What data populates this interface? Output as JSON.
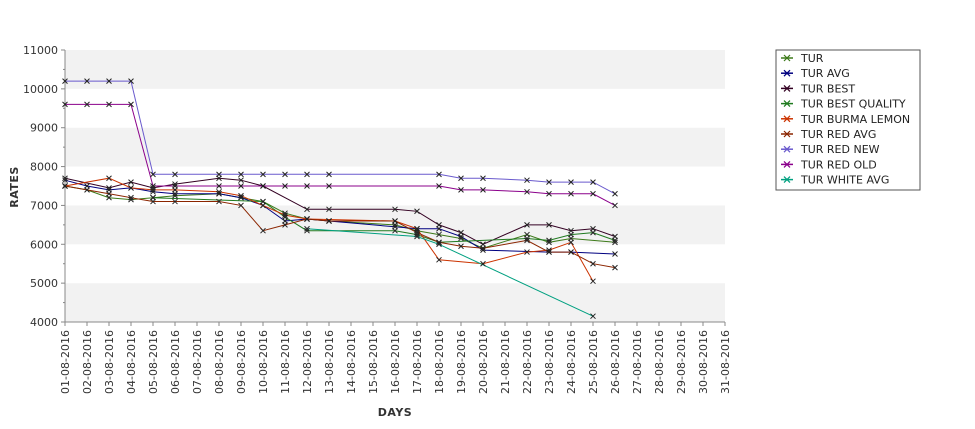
{
  "chart_data": {
    "type": "line",
    "xlabel": "DAYS",
    "ylabel": "RATES",
    "ylim": [
      4000,
      11000
    ],
    "y_ticks": [
      4000,
      5000,
      6000,
      7000,
      8000,
      9000,
      10000,
      11000
    ],
    "grid": "alternating horizontal bands",
    "legend_position": "right",
    "x": [
      "01-08-2016",
      "02-08-2016",
      "03-08-2016",
      "04-08-2016",
      "05-08-2016",
      "06-08-2016",
      "07-08-2016",
      "08-08-2016",
      "09-08-2016",
      "10-08-2016",
      "11-08-2016",
      "12-08-2016",
      "13-08-2016",
      "14-08-2016",
      "15-08-2016",
      "16-08-2016",
      "17-08-2016",
      "18-08-2016",
      "19-08-2016",
      "20-08-2016",
      "21-08-2016",
      "22-08-2016",
      "23-08-2016",
      "24-08-2016",
      "25-08-2016",
      "26-08-2016",
      "27-08-2016",
      "28-08-2016",
      "29-08-2016",
      "30-08-2016",
      "31-08-2016"
    ],
    "series": [
      {
        "name": "TUR",
        "color": "#3d7a1a",
        "points": [
          [
            "01-08-2016",
            7500
          ],
          [
            "02-08-2016",
            7400
          ],
          [
            "03-08-2016",
            7200
          ],
          [
            "04-08-2016",
            7150
          ],
          [
            "05-08-2016",
            7200
          ],
          [
            "06-08-2016",
            7250
          ],
          [
            "08-08-2016",
            7300
          ],
          [
            "09-08-2016",
            7200
          ],
          [
            "10-08-2016",
            7100
          ],
          [
            "11-08-2016",
            6800
          ],
          [
            "12-08-2016",
            6650
          ],
          [
            "13-08-2016",
            6600
          ],
          [
            "16-08-2016",
            6500
          ],
          [
            "17-08-2016",
            6350
          ],
          [
            "18-08-2016",
            6250
          ],
          [
            "19-08-2016",
            6150
          ],
          [
            "20-08-2016",
            5900
          ],
          [
            "22-08-2016",
            6250
          ],
          [
            "23-08-2016",
            6050
          ],
          [
            "24-08-2016",
            6150
          ],
          [
            "26-08-2016",
            6050
          ]
        ]
      },
      {
        "name": "TUR AVG",
        "color": "#000080",
        "points": [
          [
            "01-08-2016",
            7650
          ],
          [
            "02-08-2016",
            7500
          ],
          [
            "03-08-2016",
            7400
          ],
          [
            "04-08-2016",
            7450
          ],
          [
            "05-08-2016",
            7350
          ],
          [
            "06-08-2016",
            7300
          ],
          [
            "08-08-2016",
            7300
          ],
          [
            "09-08-2016",
            7200
          ],
          [
            "10-08-2016",
            7000
          ],
          [
            "11-08-2016",
            6600
          ],
          [
            "12-08-2016",
            6650
          ],
          [
            "13-08-2016",
            6600
          ],
          [
            "16-08-2016",
            6450
          ],
          [
            "17-08-2016",
            6400
          ],
          [
            "18-08-2016",
            6400
          ],
          [
            "19-08-2016",
            6200
          ],
          [
            "20-08-2016",
            5850
          ],
          [
            "23-08-2016",
            5800
          ],
          [
            "24-08-2016",
            5800
          ],
          [
            "26-08-2016",
            5750
          ]
        ]
      },
      {
        "name": "TUR BEST",
        "color": "#330022",
        "points": [
          [
            "01-08-2016",
            7700
          ],
          [
            "03-08-2016",
            7450
          ],
          [
            "04-08-2016",
            7600
          ],
          [
            "05-08-2016",
            7450
          ],
          [
            "06-08-2016",
            7550
          ],
          [
            "08-08-2016",
            7700
          ],
          [
            "09-08-2016",
            7650
          ],
          [
            "10-08-2016",
            7500
          ],
          [
            "12-08-2016",
            6900
          ],
          [
            "13-08-2016",
            6900
          ],
          [
            "16-08-2016",
            6900
          ],
          [
            "17-08-2016",
            6850
          ],
          [
            "18-08-2016",
            6500
          ],
          [
            "19-08-2016",
            6300
          ],
          [
            "20-08-2016",
            6000
          ],
          [
            "22-08-2016",
            6500
          ],
          [
            "23-08-2016",
            6500
          ],
          [
            "24-08-2016",
            6350
          ],
          [
            "25-08-2016",
            6400
          ],
          [
            "26-08-2016",
            6200
          ]
        ]
      },
      {
        "name": "TUR BEST QUALITY",
        "color": "#1f7a1f",
        "points": [
          [
            "05-08-2016",
            7200
          ],
          [
            "10-08-2016",
            7100
          ],
          [
            "11-08-2016",
            6700
          ],
          [
            "12-08-2016",
            6350
          ],
          [
            "16-08-2016",
            6350
          ],
          [
            "17-08-2016",
            6250
          ],
          [
            "18-08-2016",
            6050
          ],
          [
            "22-08-2016",
            6150
          ],
          [
            "23-08-2016",
            6100
          ],
          [
            "24-08-2016",
            6250
          ],
          [
            "25-08-2016",
            6300
          ],
          [
            "26-08-2016",
            6100
          ]
        ]
      },
      {
        "name": "TUR BURMA LEMON",
        "color": "#cc3300",
        "points": [
          [
            "01-08-2016",
            7500
          ],
          [
            "03-08-2016",
            7700
          ],
          [
            "04-08-2016",
            7450
          ],
          [
            "05-08-2016",
            7400
          ],
          [
            "06-08-2016",
            7400
          ],
          [
            "08-08-2016",
            7350
          ],
          [
            "09-08-2016",
            7250
          ],
          [
            "10-08-2016",
            7000
          ],
          [
            "11-08-2016",
            6750
          ],
          [
            "12-08-2016",
            6650
          ],
          [
            "16-08-2016",
            6600
          ],
          [
            "17-08-2016",
            6400
          ],
          [
            "18-08-2016",
            5600
          ],
          [
            "20-08-2016",
            5500
          ],
          [
            "22-08-2016",
            5800
          ],
          [
            "23-08-2016",
            5850
          ],
          [
            "24-08-2016",
            6050
          ],
          [
            "25-08-2016",
            5050
          ]
        ]
      },
      {
        "name": "TUR RED AVG",
        "color": "#8b2500",
        "points": [
          [
            "01-08-2016",
            7500
          ],
          [
            "03-08-2016",
            7300
          ],
          [
            "04-08-2016",
            7200
          ],
          [
            "05-08-2016",
            7100
          ],
          [
            "06-08-2016",
            7100
          ],
          [
            "08-08-2016",
            7100
          ],
          [
            "09-08-2016",
            7000
          ],
          [
            "10-08-2016",
            6350
          ],
          [
            "11-08-2016",
            6500
          ],
          [
            "12-08-2016",
            6650
          ],
          [
            "13-08-2016",
            6600
          ],
          [
            "16-08-2016",
            6600
          ],
          [
            "17-08-2016",
            6300
          ],
          [
            "18-08-2016",
            6050
          ],
          [
            "19-08-2016",
            5950
          ],
          [
            "20-08-2016",
            5900
          ],
          [
            "22-08-2016",
            6100
          ],
          [
            "23-08-2016",
            5800
          ],
          [
            "24-08-2016",
            5800
          ],
          [
            "25-08-2016",
            5500
          ],
          [
            "26-08-2016",
            5400
          ]
        ]
      },
      {
        "name": "TUR RED NEW",
        "color": "#6a5acd",
        "points": [
          [
            "01-08-2016",
            10200
          ],
          [
            "02-08-2016",
            10200
          ],
          [
            "03-08-2016",
            10200
          ],
          [
            "04-08-2016",
            10200
          ],
          [
            "05-08-2016",
            7800
          ],
          [
            "06-08-2016",
            7800
          ],
          [
            "08-08-2016",
            7800
          ],
          [
            "09-08-2016",
            7800
          ],
          [
            "10-08-2016",
            7800
          ],
          [
            "11-08-2016",
            7800
          ],
          [
            "12-08-2016",
            7800
          ],
          [
            "13-08-2016",
            7800
          ],
          [
            "18-08-2016",
            7800
          ],
          [
            "19-08-2016",
            7700
          ],
          [
            "20-08-2016",
            7700
          ],
          [
            "22-08-2016",
            7650
          ],
          [
            "23-08-2016",
            7600
          ],
          [
            "24-08-2016",
            7600
          ],
          [
            "25-08-2016",
            7600
          ],
          [
            "26-08-2016",
            7300
          ]
        ]
      },
      {
        "name": "TUR RED OLD",
        "color": "#8b008b",
        "points": [
          [
            "01-08-2016",
            9600
          ],
          [
            "02-08-2016",
            9600
          ],
          [
            "03-08-2016",
            9600
          ],
          [
            "04-08-2016",
            9600
          ],
          [
            "05-08-2016",
            7500
          ],
          [
            "06-08-2016",
            7500
          ],
          [
            "08-08-2016",
            7500
          ],
          [
            "09-08-2016",
            7500
          ],
          [
            "10-08-2016",
            7500
          ],
          [
            "11-08-2016",
            7500
          ],
          [
            "12-08-2016",
            7500
          ],
          [
            "13-08-2016",
            7500
          ],
          [
            "18-08-2016",
            7500
          ],
          [
            "19-08-2016",
            7400
          ],
          [
            "20-08-2016",
            7400
          ],
          [
            "22-08-2016",
            7350
          ],
          [
            "23-08-2016",
            7300
          ],
          [
            "24-08-2016",
            7300
          ],
          [
            "25-08-2016",
            7300
          ],
          [
            "26-08-2016",
            7000
          ]
        ]
      },
      {
        "name": "TUR WHITE AVG",
        "color": "#00a080",
        "points": [
          [
            "12-08-2016",
            6400
          ],
          [
            "17-08-2016",
            6200
          ],
          [
            "18-08-2016",
            6000
          ],
          [
            "25-08-2016",
            4150
          ]
        ]
      }
    ]
  }
}
